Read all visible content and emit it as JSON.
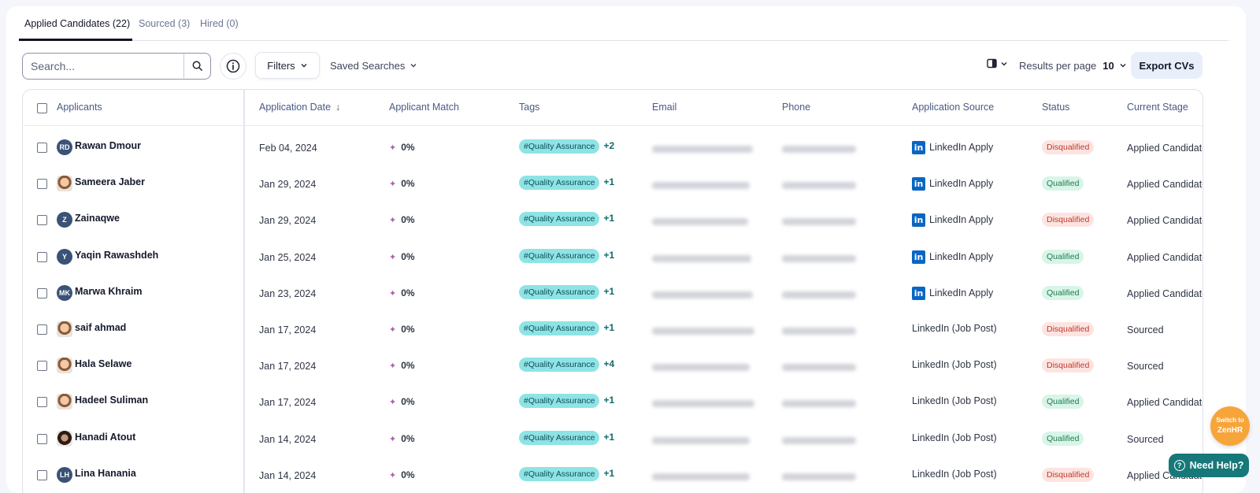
{
  "tabs": [
    {
      "label": "Applied Candidates (22)",
      "active": true
    },
    {
      "label": "Sourced (3)",
      "active": false
    },
    {
      "label": "Hired (0)",
      "active": false
    }
  ],
  "toolbar": {
    "search_placeholder": "Search...",
    "filters_label": "Filters",
    "saved_searches_label": "Saved Searches",
    "results_per_page_label": "Results per page",
    "results_per_page_value": "10",
    "export_label": "Export CVs"
  },
  "columns": {
    "applicants": "Applicants",
    "application_date": "Application Date",
    "applicant_match": "Applicant Match",
    "tags": "Tags",
    "email": "Email",
    "phone": "Phone",
    "application_source": "Application Source",
    "status": "Status",
    "current_stage": "Current Stage"
  },
  "rows": [
    {
      "name": "Rawan Dmour",
      "initials": "RD",
      "avatar": "initials",
      "date": "Feb 04, 2024",
      "match": "0%",
      "tag": "#Quality Assurance",
      "tag_more": "+2",
      "source": "LinkedIn Apply",
      "source_linkedin_icon": true,
      "status": "Disqualified",
      "stage": "Applied Candidates"
    },
    {
      "name": "Sameera Jaber",
      "initials": "",
      "avatar": "photo",
      "date": "Jan 29, 2024",
      "match": "0%",
      "tag": "#Quality Assurance",
      "tag_more": "+1",
      "source": "LinkedIn Apply",
      "source_linkedin_icon": true,
      "status": "Qualified",
      "stage": "Applied Candidates"
    },
    {
      "name": "Zainaqwe",
      "initials": "Z",
      "avatar": "initials",
      "date": "Jan 29, 2024",
      "match": "0%",
      "tag": "#Quality Assurance",
      "tag_more": "+1",
      "source": "LinkedIn Apply",
      "source_linkedin_icon": true,
      "status": "Disqualified",
      "stage": "Applied Candidates"
    },
    {
      "name": "Yaqin Rawashdeh",
      "initials": "Y",
      "avatar": "initials",
      "date": "Jan 25, 2024",
      "match": "0%",
      "tag": "#Quality Assurance",
      "tag_more": "+1",
      "source": "LinkedIn Apply",
      "source_linkedin_icon": true,
      "status": "Qualified",
      "stage": "Applied Candidates"
    },
    {
      "name": "Marwa Khraim",
      "initials": "MK",
      "avatar": "initials",
      "date": "Jan 23, 2024",
      "match": "0%",
      "tag": "#Quality Assurance",
      "tag_more": "+1",
      "source": "LinkedIn Apply",
      "source_linkedin_icon": true,
      "status": "Qualified",
      "stage": "Applied Candidates"
    },
    {
      "name": "saif ahmad",
      "initials": "",
      "avatar": "photo",
      "date": "Jan 17, 2024",
      "match": "0%",
      "tag": "#Quality Assurance",
      "tag_more": "+1",
      "source": "LinkedIn (Job Post)",
      "source_linkedin_icon": false,
      "status": "Disqualified",
      "stage": "Sourced"
    },
    {
      "name": "Hala Selawe",
      "initials": "",
      "avatar": "photo",
      "date": "Jan 17, 2024",
      "match": "0%",
      "tag": "#Quality Assurance",
      "tag_more": "+4",
      "source": "LinkedIn (Job Post)",
      "source_linkedin_icon": false,
      "status": "Disqualified",
      "stage": "Sourced"
    },
    {
      "name": "Hadeel Suliman",
      "initials": "",
      "avatar": "photo",
      "date": "Jan 17, 2024",
      "match": "0%",
      "tag": "#Quality Assurance",
      "tag_more": "+1",
      "source": "LinkedIn (Job Post)",
      "source_linkedin_icon": false,
      "status": "Qualified",
      "stage": "Applied Candidates"
    },
    {
      "name": "Hanadi Atout",
      "initials": "",
      "avatar": "photo-dark",
      "date": "Jan 14, 2024",
      "match": "0%",
      "tag": "#Quality Assurance",
      "tag_more": "+1",
      "source": "LinkedIn (Job Post)",
      "source_linkedin_icon": false,
      "status": "Qualified",
      "stage": "Sourced"
    },
    {
      "name": "Lina Hanania",
      "initials": "LH",
      "avatar": "initials",
      "date": "Jan 14, 2024",
      "match": "0%",
      "tag": "#Quality Assurance",
      "tag_more": "+1",
      "source": "LinkedIn (Job Post)",
      "source_linkedin_icon": false,
      "status": "Disqualified",
      "stage": "Applied Candidates"
    }
  ],
  "floating": {
    "switch_line1": "Switch to",
    "switch_line2": "ZenHR",
    "help_label": "Need Help?"
  },
  "colors": {
    "tag_bg": "#8ee4e4",
    "disqualified_bg": "#fde4e1",
    "qualified_bg": "#d8f5e8",
    "linkedin": "#0a66c2",
    "help_bg": "#17787a",
    "switch_bg": "#f7a53b"
  }
}
